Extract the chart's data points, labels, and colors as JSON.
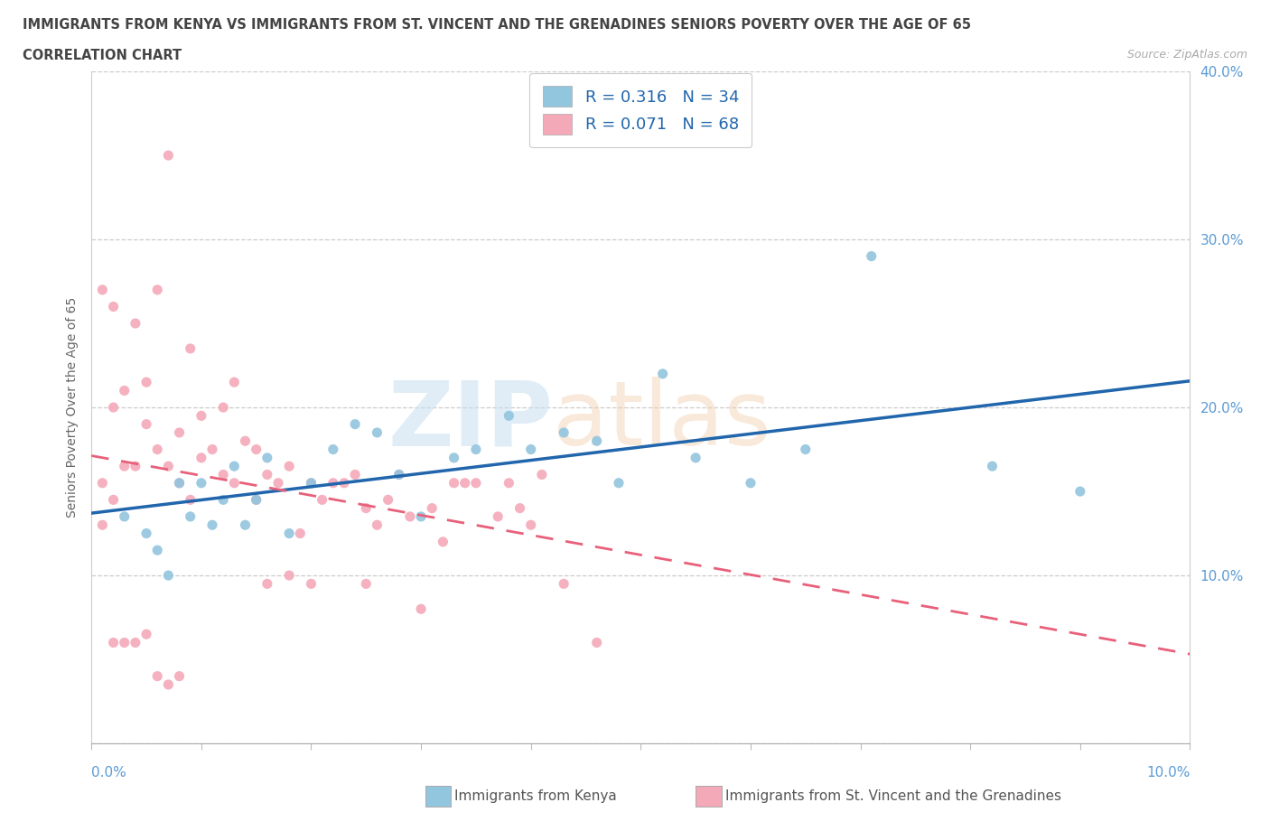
{
  "title_line1": "IMMIGRANTS FROM KENYA VS IMMIGRANTS FROM ST. VINCENT AND THE GRENADINES SENIORS POVERTY OVER THE AGE OF 65",
  "title_line2": "CORRELATION CHART",
  "source_text": "Source: ZipAtlas.com",
  "ylabel": "Seniors Poverty Over the Age of 65",
  "kenya_R": 0.316,
  "kenya_N": 34,
  "svg_R": 0.071,
  "svg_N": 68,
  "xlim": [
    0.0,
    0.1
  ],
  "ylim": [
    0.0,
    0.4
  ],
  "kenya_color": "#92c5de",
  "kenya_line_color": "#2166ac",
  "svg_color": "#f4a9b8",
  "svg_line_color": "#e8607a",
  "kenya_scatter_x": [
    0.003,
    0.005,
    0.006,
    0.007,
    0.008,
    0.009,
    0.01,
    0.011,
    0.012,
    0.013,
    0.014,
    0.015,
    0.016,
    0.018,
    0.02,
    0.022,
    0.024,
    0.026,
    0.028,
    0.03,
    0.033,
    0.035,
    0.038,
    0.04,
    0.043,
    0.046,
    0.048,
    0.052,
    0.055,
    0.06,
    0.065,
    0.071,
    0.082,
    0.09
  ],
  "kenya_scatter_y": [
    0.135,
    0.125,
    0.115,
    0.1,
    0.155,
    0.135,
    0.155,
    0.13,
    0.145,
    0.165,
    0.13,
    0.145,
    0.17,
    0.125,
    0.155,
    0.175,
    0.19,
    0.185,
    0.16,
    0.135,
    0.17,
    0.175,
    0.195,
    0.175,
    0.185,
    0.18,
    0.155,
    0.22,
    0.17,
    0.155,
    0.175,
    0.29,
    0.165,
    0.15
  ],
  "svg_scatter_x": [
    0.001,
    0.001,
    0.001,
    0.002,
    0.002,
    0.002,
    0.002,
    0.003,
    0.003,
    0.003,
    0.004,
    0.004,
    0.004,
    0.005,
    0.005,
    0.005,
    0.006,
    0.006,
    0.006,
    0.007,
    0.007,
    0.007,
    0.008,
    0.008,
    0.008,
    0.009,
    0.009,
    0.01,
    0.01,
    0.011,
    0.012,
    0.012,
    0.013,
    0.013,
    0.014,
    0.015,
    0.015,
    0.016,
    0.016,
    0.017,
    0.018,
    0.018,
    0.019,
    0.02,
    0.02,
    0.021,
    0.022,
    0.023,
    0.024,
    0.025,
    0.025,
    0.026,
    0.027,
    0.028,
    0.029,
    0.03,
    0.031,
    0.032,
    0.033,
    0.034,
    0.035,
    0.037,
    0.038,
    0.039,
    0.04,
    0.041,
    0.043,
    0.046
  ],
  "svg_scatter_y": [
    0.27,
    0.155,
    0.13,
    0.26,
    0.2,
    0.145,
    0.06,
    0.21,
    0.165,
    0.06,
    0.25,
    0.165,
    0.06,
    0.215,
    0.19,
    0.065,
    0.27,
    0.175,
    0.04,
    0.35,
    0.165,
    0.035,
    0.185,
    0.155,
    0.04,
    0.235,
    0.145,
    0.195,
    0.17,
    0.175,
    0.2,
    0.16,
    0.215,
    0.155,
    0.18,
    0.145,
    0.175,
    0.16,
    0.095,
    0.155,
    0.165,
    0.1,
    0.125,
    0.155,
    0.095,
    0.145,
    0.155,
    0.155,
    0.16,
    0.14,
    0.095,
    0.13,
    0.145,
    0.16,
    0.135,
    0.08,
    0.14,
    0.12,
    0.155,
    0.155,
    0.155,
    0.135,
    0.155,
    0.14,
    0.13,
    0.16,
    0.095,
    0.06
  ]
}
